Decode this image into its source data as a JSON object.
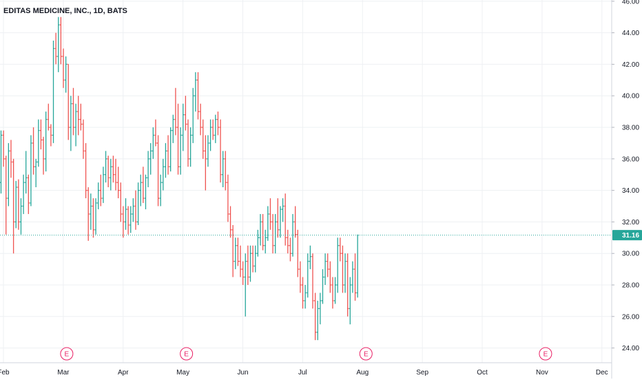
{
  "chart_data": {
    "type": "ohlc",
    "title": "EDITAS MEDICINE, INC., 1D, BATS",
    "ylim": [
      23,
      46
    ],
    "y_ticks": [
      24,
      26,
      28,
      30,
      32,
      34,
      36,
      38,
      40,
      42,
      44,
      46
    ],
    "y_tick_labels": [
      "24.00",
      "26.00",
      "28.00",
      "30.00",
      "32.00",
      "34.00",
      "36.00",
      "38.00",
      "40.00",
      "42.00",
      "44.00",
      "46.00"
    ],
    "x_tick_labels": [
      "Feb",
      "Mar",
      "Apr",
      "May",
      "Jun",
      "Jul",
      "Aug",
      "Sep",
      "Oct",
      "Nov",
      "Dec"
    ],
    "x_tick_bar_index": [
      0,
      24,
      48,
      72,
      96,
      120,
      144,
      168,
      192,
      216,
      240
    ],
    "last_price": 31.16,
    "last_price_label": "31.16",
    "earnings_markers": [
      {
        "label": "E",
        "bar_index": 24
      },
      {
        "label": "E",
        "bar_index": 72
      },
      {
        "label": "E",
        "bar_index": 144
      },
      {
        "label": "E",
        "bar_index": 216
      }
    ],
    "grid": true,
    "colors": {
      "up": "#26a69a",
      "down": "#ef5350",
      "grid": "#eef0f3",
      "earnings": "#e91e63",
      "price_line": "#26a69a"
    },
    "bars": [
      [
        34.5,
        37.8,
        33.8,
        37.5
      ],
      [
        37.5,
        37.8,
        35.5,
        36.0
      ],
      [
        36.0,
        36.2,
        31.2,
        33.5
      ],
      [
        33.5,
        37.0,
        33.0,
        36.5
      ],
      [
        36.5,
        37.2,
        34.8,
        35.8
      ],
      [
        35.8,
        36.0,
        30.0,
        32.0
      ],
      [
        32.0,
        34.6,
        31.6,
        34.2
      ],
      [
        34.2,
        34.7,
        31.5,
        32.0
      ],
      [
        32.0,
        33.5,
        31.2,
        33.0
      ],
      [
        33.0,
        35.0,
        32.5,
        34.5
      ],
      [
        34.5,
        36.5,
        33.8,
        34.8
      ],
      [
        34.8,
        35.0,
        32.5,
        33.2
      ],
      [
        33.2,
        37.5,
        33.0,
        37.0
      ],
      [
        37.0,
        38.0,
        35.0,
        35.5
      ],
      [
        35.5,
        36.0,
        34.2,
        35.8
      ],
      [
        35.8,
        38.5,
        35.5,
        37.8
      ],
      [
        37.8,
        38.5,
        36.6,
        37.2
      ],
      [
        37.2,
        37.4,
        35.0,
        36.0
      ],
      [
        36.0,
        39.0,
        35.2,
        38.5
      ],
      [
        38.5,
        39.5,
        37.8,
        38.0
      ],
      [
        38.0,
        38.2,
        36.8,
        37.5
      ],
      [
        37.5,
        43.5,
        37.0,
        43.0
      ],
      [
        43.0,
        44.0,
        42.0,
        42.5
      ],
      [
        42.5,
        45.0,
        41.5,
        44.5
      ],
      [
        44.5,
        45.0,
        42.0,
        42.5
      ],
      [
        42.5,
        43.0,
        40.5,
        41.0
      ],
      [
        41.0,
        42.5,
        40.2,
        42.0
      ],
      [
        42.0,
        42.0,
        37.2,
        38.0
      ],
      [
        38.0,
        40.0,
        36.5,
        39.5
      ],
      [
        39.5,
        40.5,
        37.5,
        38.0
      ],
      [
        38.0,
        39.5,
        36.8,
        39.0
      ],
      [
        39.0,
        40.0,
        37.5,
        38.5
      ],
      [
        38.5,
        39.5,
        37.8,
        38.2
      ],
      [
        38.2,
        38.5,
        36.0,
        36.5
      ],
      [
        36.5,
        37.0,
        33.5,
        34.0
      ],
      [
        34.0,
        34.2,
        30.8,
        32.5
      ],
      [
        32.5,
        33.8,
        31.5,
        33.0
      ],
      [
        33.0,
        33.5,
        31.0,
        31.5
      ],
      [
        31.5,
        33.5,
        31.2,
        33.2
      ],
      [
        33.2,
        34.5,
        32.8,
        34.0
      ],
      [
        34.0,
        35.0,
        33.0,
        33.5
      ],
      [
        33.5,
        35.5,
        33.2,
        35.0
      ],
      [
        35.0,
        36.5,
        34.5,
        36.0
      ],
      [
        36.0,
        36.2,
        34.2,
        34.8
      ],
      [
        34.8,
        36.0,
        34.0,
        35.5
      ],
      [
        35.5,
        36.2,
        34.5,
        35.0
      ],
      [
        35.0,
        36.0,
        34.0,
        34.5
      ],
      [
        34.5,
        35.5,
        33.5,
        34.0
      ],
      [
        34.0,
        34.5,
        32.0,
        32.5
      ],
      [
        32.5,
        33.0,
        31.0,
        32.0
      ],
      [
        32.0,
        33.5,
        31.5,
        32.8
      ],
      [
        32.8,
        33.0,
        31.2,
        31.8
      ],
      [
        31.8,
        33.0,
        31.3,
        32.5
      ],
      [
        32.5,
        33.5,
        32.0,
        33.0
      ],
      [
        33.0,
        34.0,
        31.5,
        32.0
      ],
      [
        32.0,
        34.5,
        31.8,
        34.0
      ],
      [
        34.0,
        35.0,
        33.0,
        34.5
      ],
      [
        34.5,
        35.5,
        33.2,
        33.5
      ],
      [
        33.5,
        35.0,
        32.8,
        34.8
      ],
      [
        34.8,
        36.5,
        34.2,
        36.0
      ],
      [
        36.0,
        37.0,
        35.0,
        36.5
      ],
      [
        36.5,
        38.0,
        36.0,
        37.5
      ],
      [
        37.5,
        38.5,
        36.8,
        37.0
      ],
      [
        37.0,
        37.5,
        33.0,
        33.5
      ],
      [
        33.5,
        35.0,
        33.0,
        34.5
      ],
      [
        34.5,
        36.0,
        34.0,
        35.5
      ],
      [
        35.5,
        37.0,
        34.8,
        36.5
      ],
      [
        36.5,
        37.5,
        35.0,
        35.5
      ],
      [
        35.5,
        38.0,
        35.2,
        37.8
      ],
      [
        37.8,
        38.8,
        37.0,
        38.5
      ],
      [
        38.5,
        40.5,
        37.5,
        38.0
      ],
      [
        38.0,
        39.5,
        35.0,
        35.5
      ],
      [
        35.5,
        38.0,
        35.0,
        37.5
      ],
      [
        37.5,
        39.5,
        36.5,
        38.8
      ],
      [
        38.8,
        40.0,
        37.8,
        38.2
      ],
      [
        38.2,
        38.5,
        35.5,
        36.0
      ],
      [
        36.0,
        38.0,
        35.5,
        37.5
      ],
      [
        37.5,
        40.5,
        37.0,
        40.0
      ],
      [
        40.0,
        41.5,
        39.0,
        41.0
      ],
      [
        41.0,
        41.5,
        38.5,
        39.0
      ],
      [
        39.0,
        39.5,
        37.5,
        38.0
      ],
      [
        38.0,
        38.5,
        36.0,
        36.5
      ],
      [
        36.5,
        37.5,
        34.0,
        36.0
      ],
      [
        36.0,
        37.5,
        35.5,
        37.0
      ],
      [
        37.0,
        38.5,
        36.5,
        38.0
      ],
      [
        38.0,
        38.5,
        37.2,
        37.5
      ],
      [
        37.5,
        38.8,
        37.0,
        38.5
      ],
      [
        38.5,
        39.0,
        37.5,
        38.0
      ],
      [
        38.0,
        38.5,
        34.5,
        35.0
      ],
      [
        35.0,
        36.5,
        34.2,
        36.0
      ],
      [
        36.0,
        36.5,
        34.0,
        34.5
      ],
      [
        34.5,
        35.0,
        32.0,
        32.5
      ],
      [
        32.5,
        33.0,
        31.0,
        31.5
      ],
      [
        31.5,
        31.8,
        28.5,
        29.5
      ],
      [
        29.5,
        31.0,
        29.0,
        30.5
      ],
      [
        30.5,
        31.0,
        29.2,
        29.5
      ],
      [
        29.5,
        30.5,
        28.5,
        29.0
      ],
      [
        29.0,
        29.5,
        28.0,
        28.5
      ],
      [
        28.5,
        30.0,
        26.0,
        29.5
      ],
      [
        29.5,
        30.5,
        28.0,
        28.5
      ],
      [
        28.5,
        30.5,
        28.2,
        30.0
      ],
      [
        30.0,
        30.5,
        28.8,
        29.2
      ],
      [
        29.2,
        30.5,
        28.8,
        30.0
      ],
      [
        30.0,
        31.5,
        29.8,
        31.0
      ],
      [
        31.0,
        32.5,
        30.5,
        32.0
      ],
      [
        32.0,
        32.5,
        30.2,
        30.5
      ],
      [
        30.5,
        31.5,
        30.0,
        31.0
      ],
      [
        31.0,
        33.0,
        30.8,
        32.5
      ],
      [
        32.5,
        33.5,
        31.5,
        32.0
      ],
      [
        32.0,
        32.5,
        30.0,
        30.5
      ],
      [
        30.5,
        32.5,
        30.0,
        32.0
      ],
      [
        32.0,
        33.5,
        31.0,
        31.5
      ],
      [
        31.5,
        33.0,
        31.0,
        32.8
      ],
      [
        32.8,
        33.5,
        32.0,
        33.0
      ],
      [
        33.0,
        33.8,
        30.5,
        31.0
      ],
      [
        31.0,
        31.5,
        30.0,
        30.5
      ],
      [
        30.5,
        31.0,
        29.5,
        30.0
      ],
      [
        30.0,
        32.5,
        29.8,
        32.0
      ],
      [
        32.0,
        33.0,
        31.0,
        31.2
      ],
      [
        31.2,
        31.5,
        28.5,
        29.0
      ],
      [
        29.0,
        29.5,
        27.5,
        28.0
      ],
      [
        28.0,
        28.5,
        26.5,
        27.0
      ],
      [
        27.0,
        28.0,
        26.5,
        27.5
      ],
      [
        27.5,
        30.0,
        27.2,
        29.5
      ],
      [
        29.5,
        30.5,
        29.0,
        29.8
      ],
      [
        29.8,
        30.0,
        26.5,
        27.0
      ],
      [
        27.0,
        27.5,
        24.5,
        25.0
      ],
      [
        25.0,
        27.0,
        24.5,
        26.5
      ],
      [
        26.5,
        27.5,
        25.5,
        27.0
      ],
      [
        27.0,
        29.0,
        26.8,
        28.5
      ],
      [
        28.5,
        30.0,
        28.0,
        29.5
      ],
      [
        29.5,
        30.0,
        28.5,
        29.0
      ],
      [
        29.0,
        29.5,
        27.5,
        28.0
      ],
      [
        28.0,
        28.5,
        26.5,
        27.0
      ],
      [
        27.0,
        28.5,
        26.8,
        28.0
      ],
      [
        28.0,
        31.0,
        27.5,
        30.5
      ],
      [
        30.5,
        31.0,
        29.5,
        30.0
      ],
      [
        30.0,
        30.5,
        27.5,
        28.0
      ],
      [
        28.0,
        30.0,
        27.5,
        29.5
      ],
      [
        29.5,
        30.0,
        26.0,
        26.5
      ],
      [
        26.5,
        28.5,
        25.5,
        28.0
      ],
      [
        28.0,
        29.5,
        27.5,
        29.0
      ],
      [
        29.0,
        30.0,
        27.0,
        27.5
      ],
      [
        27.5,
        31.2,
        27.2,
        31.16
      ]
    ]
  }
}
